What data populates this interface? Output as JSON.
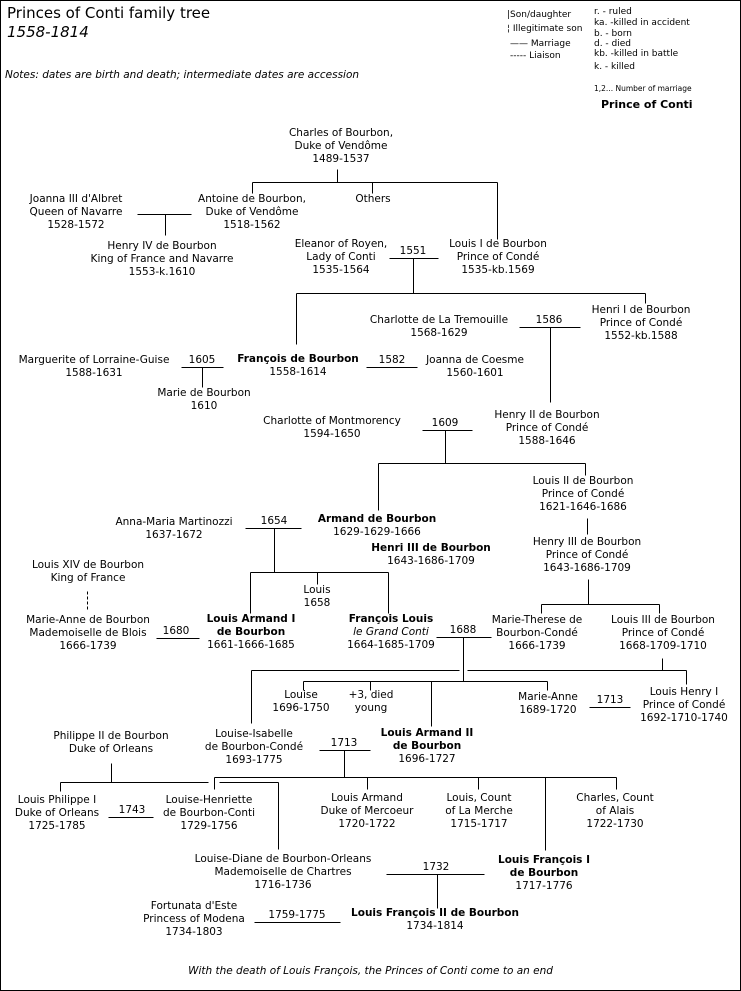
{
  "header": {
    "title": "Princes of Conti family tree",
    "years": "1558-1814",
    "notes": "Notes: dates are birth and death; intermediate dates are accession"
  },
  "legend": {
    "symbols": [
      "|Son/daughter",
      "¦ Illegitimate son",
      "—— Marriage",
      "----- Liaison"
    ],
    "abbreviations": [
      "r. - ruled",
      "ka. -killed in accident",
      "b. - born",
      "d. - died",
      "kb. -killed in battle",
      "k. - killed"
    ],
    "marriage_number": "1,2... Number of marriage",
    "prince_label": "Prince of Conti"
  },
  "people": [
    {
      "lines": [
        "Charles of Bourbon,",
        "Duke of Vendôme",
        "1489-1537"
      ]
    },
    {
      "lines": [
        "Joanna III d'Albret",
        "Queen of Navarre",
        "1528-1572"
      ]
    },
    {
      "lines": [
        "Antoine de Bourbon,",
        "Duke of Vendôme",
        "1518-1562"
      ]
    },
    {
      "lines": [
        "Others"
      ]
    },
    {
      "lines": [
        "Henry IV de Bourbon",
        "King of France and Navarre",
        "1553-k.1610"
      ]
    },
    {
      "lines": [
        "Eleanor of Royen,",
        "Lady of Conti",
        "1535-1564"
      ]
    },
    {
      "lines": [
        "Louis I de Bourbon",
        "Prince of Condé",
        "1535-kb.1569"
      ]
    },
    {
      "lines": [
        "Charlotte de La Tremouille",
        "1568-1629"
      ]
    },
    {
      "lines": [
        "Henri I de Bourbon",
        "Prince of Condé",
        "1552-kb.1588"
      ]
    },
    {
      "lines": [
        "Marguerite of Lorraine-Guise",
        "1588-1631"
      ]
    },
    {
      "lines": [
        "François de Bourbon",
        "1558-1614"
      ],
      "prince": true
    },
    {
      "lines": [
        "Joanna de Coesme",
        "1560-1601"
      ]
    },
    {
      "lines": [
        "Marie de Bourbon",
        "1610"
      ]
    },
    {
      "lines": [
        "Charlotte of Montmorency",
        "1594-1650"
      ]
    },
    {
      "lines": [
        "Henry II de Bourbon",
        "Prince of Condé",
        "1588-1646"
      ]
    },
    {
      "lines": [
        "Louis II de Bourbon",
        "Prince of Condé",
        "1621-1646-1686"
      ]
    },
    {
      "lines": [
        "Anna-Maria Martinozzi",
        "1637-1672"
      ]
    },
    {
      "lines": [
        "Armand de Bourbon",
        "1629-1629-1666"
      ],
      "prince": true
    },
    {
      "lines": [
        "Henri III de Bourbon",
        "1643-1686-1709"
      ],
      "prince": true
    },
    {
      "lines": [
        "Henry III de Bourbon",
        "Prince of Condé",
        "1643-1686-1709"
      ]
    },
    {
      "lines": [
        "Louis XIV de Bourbon",
        "King of France"
      ]
    },
    {
      "lines": [
        "Louis",
        "1658"
      ]
    },
    {
      "lines": [
        "Marie-Anne de Bourbon",
        "Mademoiselle de Blois",
        "1666-1739"
      ]
    },
    {
      "lines": [
        "Louis Armand I",
        "de Bourbon",
        "1661-1666-1685"
      ],
      "prince": true
    },
    {
      "lines": [
        "François Louis",
        "le Grand Conti",
        "1664-1685-1709"
      ],
      "prince": true
    },
    {
      "lines": [
        "Marie-Therese de",
        "Bourbon-Condé",
        "1666-1739"
      ]
    },
    {
      "lines": [
        "Louis III de Bourbon",
        "Prince of Condé",
        "1668-1709-1710"
      ]
    },
    {
      "lines": [
        "Louise",
        "1696-1750"
      ]
    },
    {
      "lines": [
        "+3, died",
        "young"
      ]
    },
    {
      "lines": [
        "Marie-Anne",
        "1689-1720"
      ]
    },
    {
      "lines": [
        "Louis Henry I",
        "Prince of Condé",
        "1692-1710-1740"
      ]
    },
    {
      "lines": [
        "Philippe II de Bourbon",
        "Duke of Orleans"
      ]
    },
    {
      "lines": [
        "Louise-Isabelle",
        "de Bourbon-Condé",
        "1693-1775"
      ]
    },
    {
      "lines": [
        "Louis Armand II",
        "de Bourbon",
        "1696-1727"
      ],
      "prince": true
    },
    {
      "lines": [
        "Louis Philippe I",
        "Duke of Orleans",
        "1725-1785"
      ]
    },
    {
      "lines": [
        "Louise-Henriette",
        "de Bourbon-Conti",
        "1729-1756"
      ]
    },
    {
      "lines": [
        "Louis Armand",
        "Duke of Mercoeur",
        "1720-1722"
      ]
    },
    {
      "lines": [
        "Louis, Count",
        "of La Merche",
        "1715-1717"
      ]
    },
    {
      "lines": [
        "Charles, Count",
        "of Alais",
        "1722-1730"
      ]
    },
    {
      "lines": [
        "Louise-Diane de Bourbon-Orleans",
        "Mademoiselle de Chartres",
        "1716-1736"
      ]
    },
    {
      "lines": [
        "Louis François I",
        "de Bourbon",
        "1717-1776"
      ],
      "prince": true
    },
    {
      "lines": [
        "Fortunata d'Este",
        "Princess of Modena",
        "1734-1803"
      ]
    },
    {
      "lines": [
        "Louis François II de Bourbon",
        "1734-1814"
      ],
      "prince": true
    }
  ],
  "marriages": [
    "1551",
    "1586",
    "1605",
    "1582",
    "1609",
    "1654",
    "1680",
    "1688",
    "1713",
    "1713",
    "1743",
    "1732",
    "1759-1775"
  ],
  "footer": "With the  death of Louis François, the Princes of Conti come to an end"
}
